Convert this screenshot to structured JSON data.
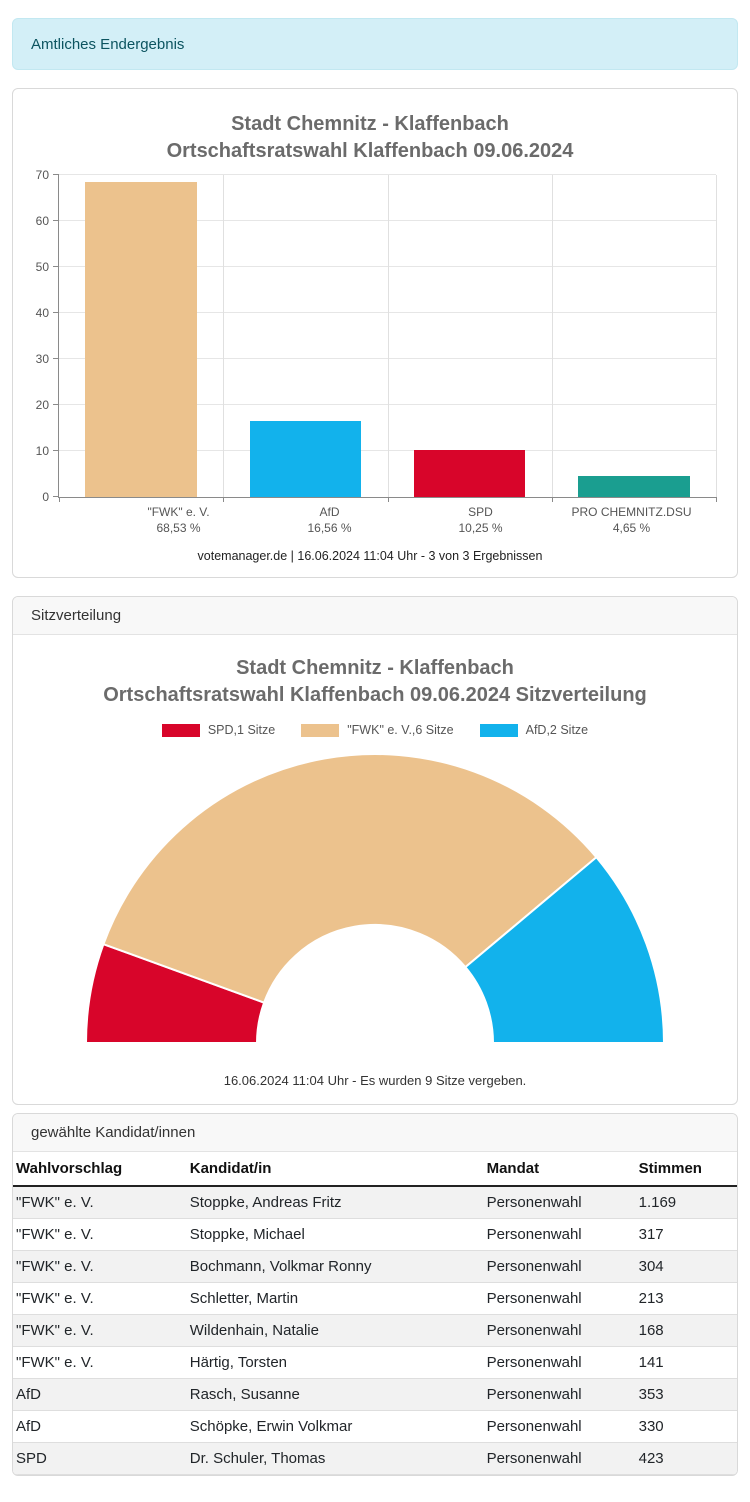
{
  "banner": {
    "label": "Amtliches Endergebnis"
  },
  "sections": {
    "seats_header": "Sitzverteilung",
    "candidates_header": "gewählte Kandidat/innen"
  },
  "chart_data": [
    {
      "type": "bar",
      "title_line1": "Stadt Chemnitz - Klaffenbach",
      "title_line2": "Ortschaftsratswahl Klaffenbach 09.06.2024",
      "categories": [
        "\"FWK\" e. V.",
        "AfD",
        "SPD",
        "PRO CHEMNITZ.DSU"
      ],
      "values": [
        68.53,
        16.56,
        10.25,
        4.65
      ],
      "value_labels": [
        "68,53 %",
        "16,56 %",
        "10,25 %",
        "4,65 %"
      ],
      "bar_colors": [
        "#ecc28d",
        "#12b2ec",
        "#d8052a",
        "#1a9e90"
      ],
      "ylim": [
        0,
        70
      ],
      "ytick_step": 10,
      "grid": true,
      "footer": "votemanager.de | 16.06.2024 11:04 Uhr - 3 von 3 Ergebnissen"
    },
    {
      "type": "donut-half",
      "title_line1": "Stadt Chemnitz - Klaffenbach",
      "title_line2": "Ortschaftsratswahl Klaffenbach 09.06.2024 Sitzverteilung",
      "legend_position": "top-center",
      "segments": [
        {
          "label": "SPD,1 Sitze",
          "name": "SPD",
          "seats": 1,
          "color": "#d8052a"
        },
        {
          "label": "\"FWK\" e. V.,6 Sitze",
          "name": "\"FWK\" e. V.",
          "seats": 6,
          "color": "#ecc28d"
        },
        {
          "label": "AfD,2 Sitze",
          "name": "AfD",
          "seats": 2,
          "color": "#12b2ec"
        }
      ],
      "total_seats": 9,
      "caption": "16.06.2024 11:04 Uhr - Es wurden 9 Sitze vergeben."
    }
  ],
  "table": {
    "headers": [
      "Wahlvorschlag",
      "Kandidat/in",
      "Mandat",
      "Stimmen"
    ],
    "col_widths": [
      "24%",
      "41%",
      "21%",
      "14%"
    ],
    "rows": [
      [
        "\"FWK\" e. V.",
        "Stoppke, Andreas Fritz",
        "Personenwahl",
        "1.169"
      ],
      [
        "\"FWK\" e. V.",
        "Stoppke, Michael",
        "Personenwahl",
        "317"
      ],
      [
        "\"FWK\" e. V.",
        "Bochmann, Volkmar Ronny",
        "Personenwahl",
        "304"
      ],
      [
        "\"FWK\" e. V.",
        "Schletter, Martin",
        "Personenwahl",
        "213"
      ],
      [
        "\"FWK\" e. V.",
        "Wildenhain, Natalie",
        "Personenwahl",
        "168"
      ],
      [
        "\"FWK\" e. V.",
        "Härtig, Torsten",
        "Personenwahl",
        "141"
      ],
      [
        "AfD",
        "Rasch, Susanne",
        "Personenwahl",
        "353"
      ],
      [
        "AfD",
        "Schöpke, Erwin Volkmar",
        "Personenwahl",
        "330"
      ],
      [
        "SPD",
        "Dr. Schuler, Thomas",
        "Personenwahl",
        "423"
      ]
    ]
  }
}
